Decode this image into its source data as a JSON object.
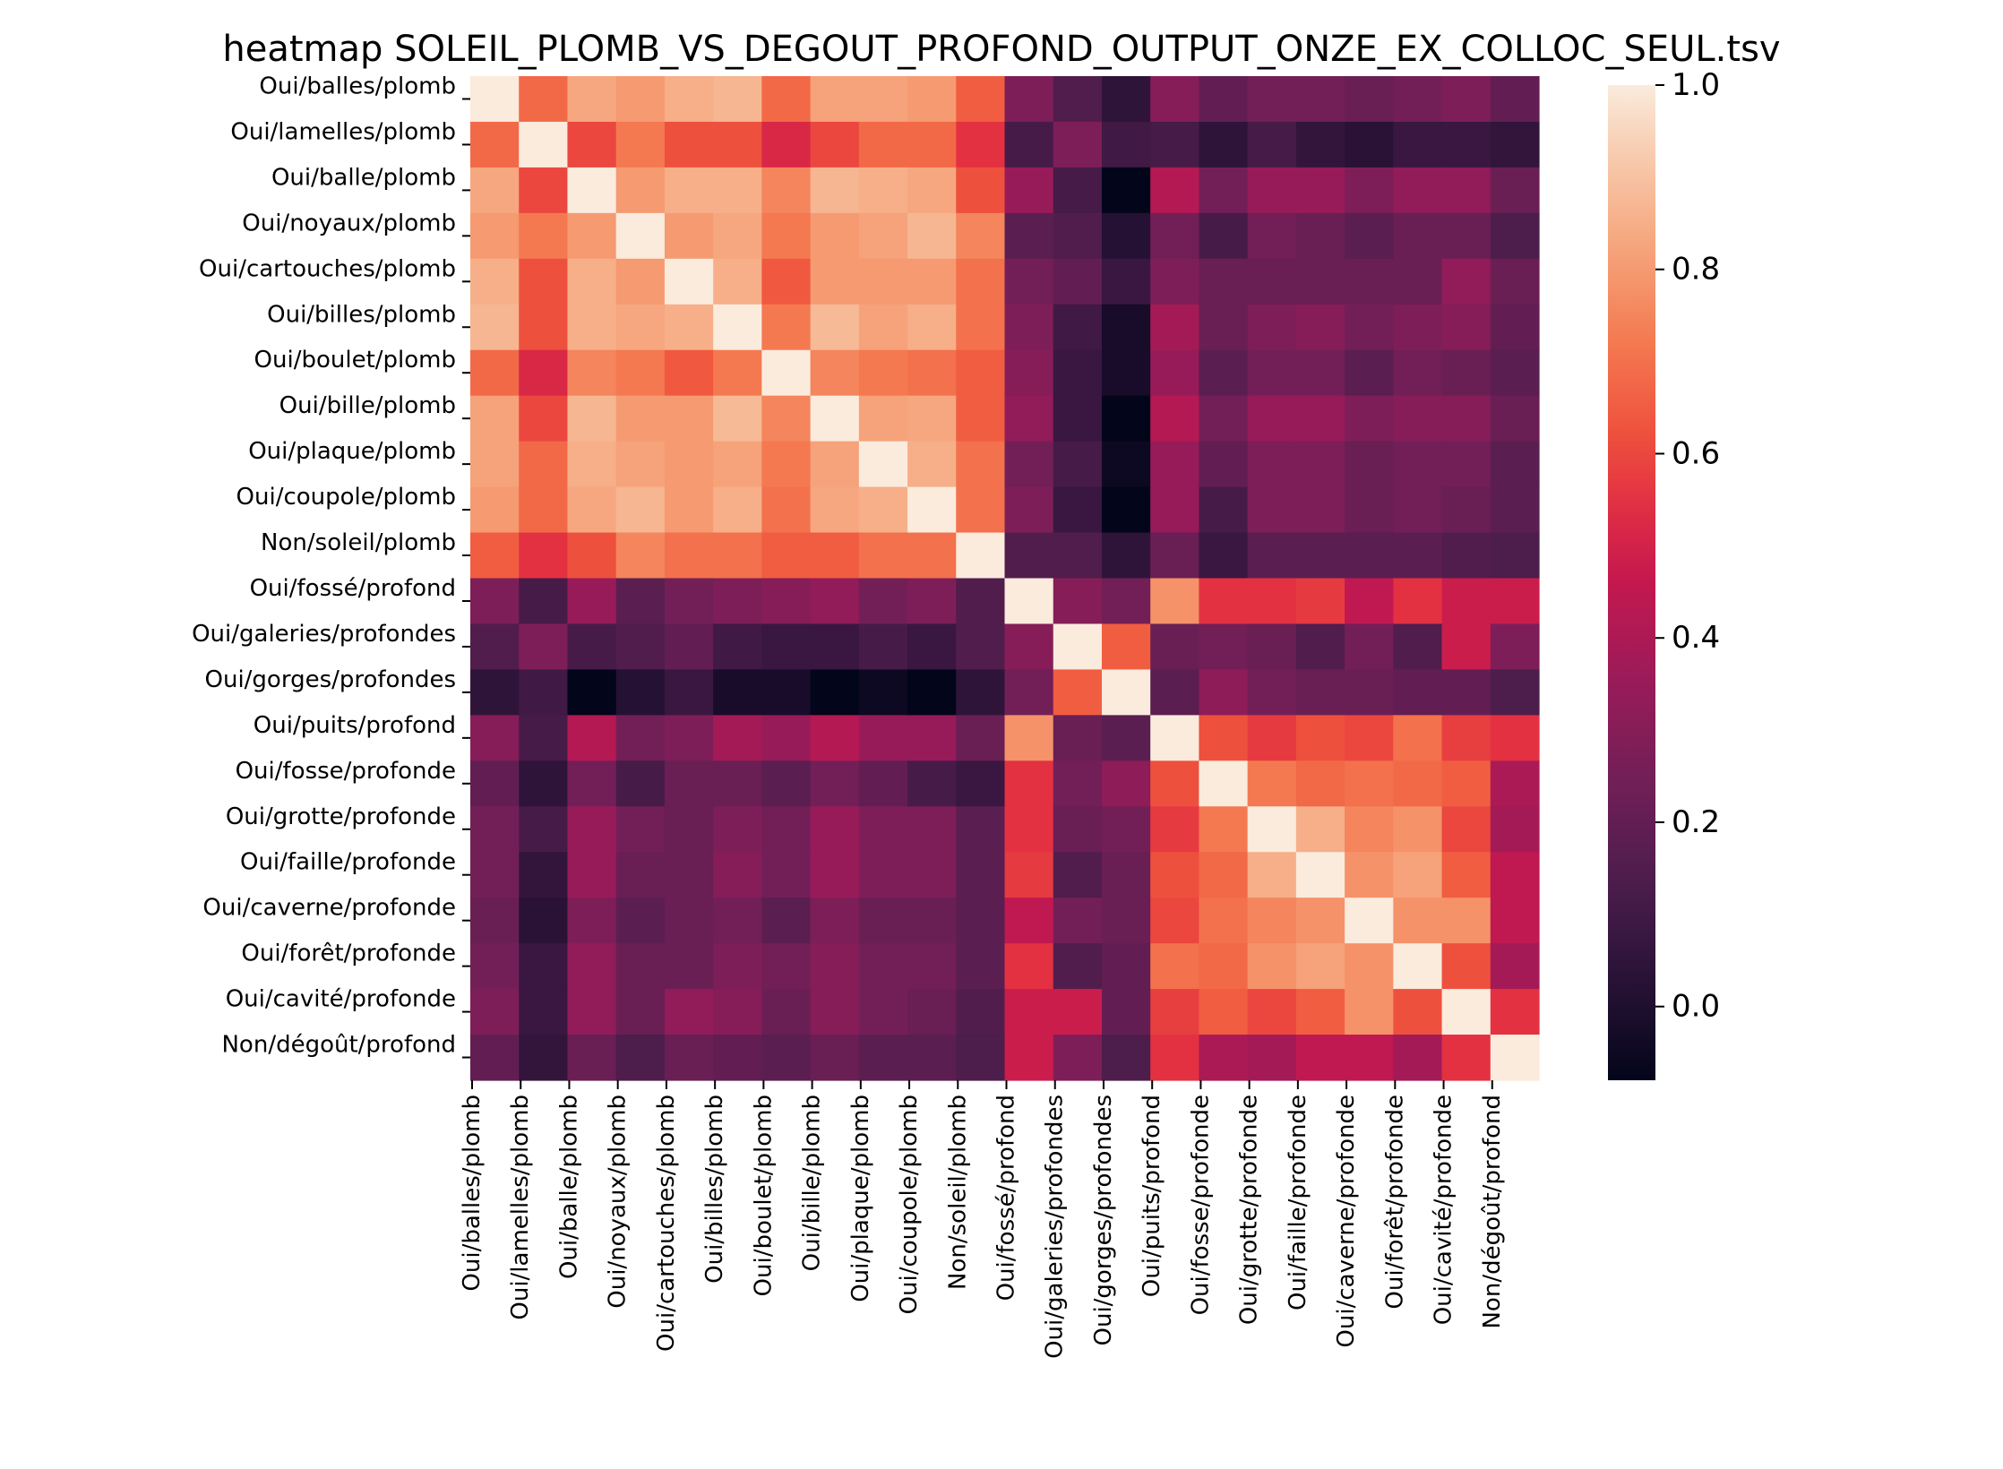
{
  "chart_data": {
    "type": "heatmap",
    "title": "heatmap SOLEIL_PLOMB_VS_DEGOUT_PROFOND_OUTPUT_ONZE_EX_COLLOC_SEUL.tsv",
    "labels": [
      "Oui/balles/plomb",
      "Oui/lamelles/plomb",
      "Oui/balle/plomb",
      "Oui/noyaux/plomb",
      "Oui/cartouches/plomb",
      "Oui/billes/plomb",
      "Oui/boulet/plomb",
      "Oui/bille/plomb",
      "Oui/plaque/plomb",
      "Oui/coupole/plomb",
      "Non/soleil/plomb",
      "Oui/fossé/profond",
      "Oui/galeries/profondes",
      "Oui/gorges/profondes",
      "Oui/puits/profond",
      "Oui/fosse/profonde",
      "Oui/grotte/profonde",
      "Oui/faille/profonde",
      "Oui/caverne/profonde",
      "Oui/forêt/profonde",
      "Oui/cavité/profonde",
      "Non/dégoût/profond"
    ],
    "values": [
      [
        1.0,
        0.68,
        0.83,
        0.8,
        0.85,
        0.87,
        0.68,
        0.82,
        0.82,
        0.8,
        0.65,
        0.28,
        0.15,
        0.05,
        0.3,
        0.2,
        0.25,
        0.25,
        0.22,
        0.25,
        0.28,
        0.2
      ],
      [
        0.68,
        1.0,
        0.6,
        0.72,
        0.62,
        0.62,
        0.52,
        0.6,
        0.68,
        0.68,
        0.55,
        0.12,
        0.28,
        0.1,
        0.12,
        0.05,
        0.12,
        0.06,
        0.03,
        0.08,
        0.08,
        0.06
      ],
      [
        0.83,
        0.6,
        1.0,
        0.8,
        0.85,
        0.85,
        0.75,
        0.87,
        0.85,
        0.83,
        0.62,
        0.35,
        0.12,
        -0.08,
        0.42,
        0.25,
        0.35,
        0.35,
        0.28,
        0.33,
        0.33,
        0.22
      ],
      [
        0.8,
        0.72,
        0.8,
        1.0,
        0.8,
        0.83,
        0.72,
        0.8,
        0.82,
        0.87,
        0.75,
        0.18,
        0.15,
        0.02,
        0.25,
        0.12,
        0.25,
        0.22,
        0.18,
        0.22,
        0.22,
        0.14
      ],
      [
        0.85,
        0.62,
        0.85,
        0.8,
        1.0,
        0.85,
        0.64,
        0.8,
        0.8,
        0.8,
        0.7,
        0.25,
        0.2,
        0.08,
        0.28,
        0.22,
        0.22,
        0.22,
        0.22,
        0.22,
        0.33,
        0.22
      ],
      [
        0.87,
        0.62,
        0.85,
        0.83,
        0.85,
        1.0,
        0.72,
        0.88,
        0.82,
        0.85,
        0.7,
        0.28,
        0.1,
        -0.02,
        0.38,
        0.22,
        0.28,
        0.3,
        0.25,
        0.28,
        0.3,
        0.2
      ],
      [
        0.68,
        0.52,
        0.75,
        0.72,
        0.64,
        0.72,
        1.0,
        0.75,
        0.72,
        0.7,
        0.65,
        0.3,
        0.08,
        -0.02,
        0.35,
        0.18,
        0.25,
        0.25,
        0.18,
        0.25,
        0.22,
        0.18
      ],
      [
        0.82,
        0.6,
        0.87,
        0.8,
        0.8,
        0.88,
        0.75,
        1.0,
        0.82,
        0.83,
        0.65,
        0.33,
        0.08,
        -0.08,
        0.42,
        0.25,
        0.35,
        0.35,
        0.28,
        0.3,
        0.3,
        0.22
      ],
      [
        0.82,
        0.68,
        0.85,
        0.82,
        0.8,
        0.82,
        0.72,
        0.82,
        1.0,
        0.85,
        0.7,
        0.25,
        0.12,
        -0.05,
        0.35,
        0.2,
        0.28,
        0.28,
        0.22,
        0.25,
        0.25,
        0.18
      ],
      [
        0.8,
        0.68,
        0.83,
        0.87,
        0.8,
        0.85,
        0.7,
        0.83,
        0.85,
        1.0,
        0.7,
        0.28,
        0.08,
        -0.08,
        0.35,
        0.12,
        0.28,
        0.28,
        0.22,
        0.25,
        0.22,
        0.18
      ],
      [
        0.65,
        0.55,
        0.62,
        0.75,
        0.7,
        0.7,
        0.65,
        0.65,
        0.7,
        0.7,
        1.0,
        0.15,
        0.15,
        0.05,
        0.22,
        0.08,
        0.18,
        0.18,
        0.18,
        0.18,
        0.15,
        0.14
      ],
      [
        0.28,
        0.12,
        0.35,
        0.18,
        0.25,
        0.28,
        0.3,
        0.33,
        0.25,
        0.28,
        0.15,
        1.0,
        0.3,
        0.25,
        0.78,
        0.55,
        0.55,
        0.57,
        0.45,
        0.55,
        0.48,
        0.48
      ],
      [
        0.15,
        0.28,
        0.12,
        0.15,
        0.2,
        0.1,
        0.08,
        0.08,
        0.12,
        0.08,
        0.15,
        0.3,
        1.0,
        0.65,
        0.22,
        0.25,
        0.22,
        0.15,
        0.25,
        0.15,
        0.48,
        0.28
      ],
      [
        0.05,
        0.1,
        -0.08,
        0.02,
        0.08,
        -0.02,
        -0.02,
        -0.08,
        -0.05,
        -0.08,
        0.05,
        0.25,
        0.65,
        1.0,
        0.18,
        0.32,
        0.25,
        0.22,
        0.22,
        0.2,
        0.2,
        0.14
      ],
      [
        0.3,
        0.12,
        0.42,
        0.25,
        0.28,
        0.38,
        0.35,
        0.42,
        0.35,
        0.35,
        0.22,
        0.78,
        0.22,
        0.18,
        1.0,
        0.62,
        0.57,
        0.62,
        0.6,
        0.7,
        0.58,
        0.55
      ],
      [
        0.2,
        0.05,
        0.25,
        0.12,
        0.22,
        0.22,
        0.18,
        0.25,
        0.2,
        0.12,
        0.08,
        0.55,
        0.25,
        0.32,
        0.62,
        1.0,
        0.72,
        0.68,
        0.7,
        0.68,
        0.65,
        0.4
      ],
      [
        0.25,
        0.12,
        0.35,
        0.25,
        0.22,
        0.28,
        0.25,
        0.35,
        0.28,
        0.28,
        0.18,
        0.55,
        0.22,
        0.25,
        0.57,
        0.72,
        1.0,
        0.85,
        0.75,
        0.78,
        0.6,
        0.38
      ],
      [
        0.25,
        0.06,
        0.35,
        0.22,
        0.22,
        0.3,
        0.25,
        0.35,
        0.28,
        0.28,
        0.18,
        0.57,
        0.15,
        0.22,
        0.62,
        0.68,
        0.85,
        1.0,
        0.78,
        0.82,
        0.65,
        0.45
      ],
      [
        0.22,
        0.03,
        0.28,
        0.18,
        0.22,
        0.25,
        0.18,
        0.28,
        0.22,
        0.22,
        0.18,
        0.45,
        0.25,
        0.22,
        0.6,
        0.7,
        0.75,
        0.78,
        1.0,
        0.78,
        0.78,
        0.45
      ],
      [
        0.25,
        0.08,
        0.33,
        0.22,
        0.22,
        0.28,
        0.25,
        0.3,
        0.25,
        0.25,
        0.18,
        0.55,
        0.15,
        0.2,
        0.7,
        0.68,
        0.78,
        0.82,
        0.78,
        1.0,
        0.62,
        0.38
      ],
      [
        0.28,
        0.08,
        0.33,
        0.22,
        0.33,
        0.3,
        0.22,
        0.3,
        0.25,
        0.22,
        0.15,
        0.48,
        0.48,
        0.2,
        0.58,
        0.65,
        0.6,
        0.65,
        0.78,
        0.62,
        1.0,
        0.55
      ],
      [
        0.2,
        0.06,
        0.22,
        0.14,
        0.22,
        0.2,
        0.18,
        0.22,
        0.18,
        0.18,
        0.14,
        0.48,
        0.28,
        0.14,
        0.55,
        0.4,
        0.38,
        0.45,
        0.45,
        0.38,
        0.55,
        1.0
      ]
    ],
    "vmin": -0.08,
    "vmax": 1.0,
    "colormap": "rocket",
    "colorbar_ticks": [
      0.0,
      0.2,
      0.4,
      0.6,
      0.8,
      1.0
    ],
    "colorbar_tick_labels": [
      "0.0",
      "0.2",
      "0.4",
      "0.6",
      "0.8",
      "1.0"
    ],
    "xlabel": "",
    "ylabel": ""
  }
}
